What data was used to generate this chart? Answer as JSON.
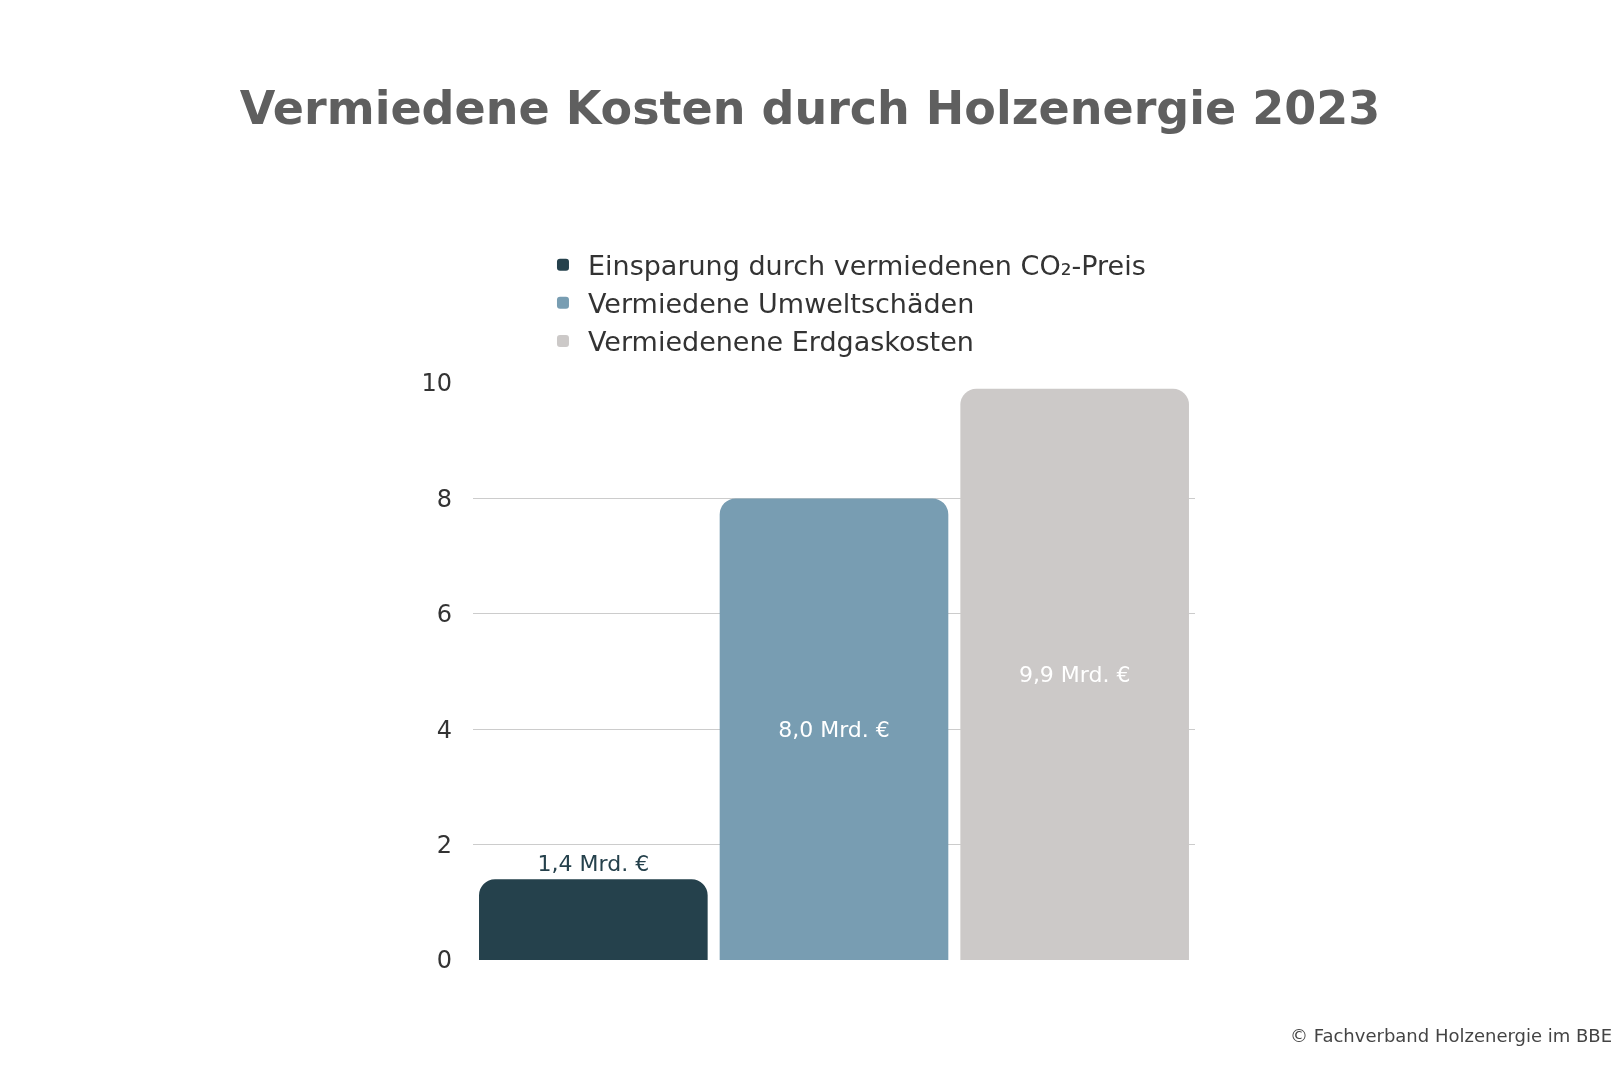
{
  "chart_data": {
    "type": "bar",
    "title": "Vermiedene Kosten durch Holzenergie 2023",
    "categories": [
      null
    ],
    "series": [
      {
        "name": "Einsparung durch vermiedenen CO₂-Preis",
        "color": "#25414c",
        "values": [
          1.4
        ],
        "value_labels": [
          "1,4 Mrd. €"
        ]
      },
      {
        "name": "Vermiedene Umweltschäden",
        "color": "#789db2",
        "values": [
          8.0
        ],
        "value_labels": [
          "8,0 Mrd. €"
        ]
      },
      {
        "name": "Vermiedenene Erdgaskosten",
        "color": "#ccc9c8",
        "values": [
          9.9
        ],
        "value_labels": [
          "9,9 Mrd. €"
        ]
      }
    ],
    "ylim": [
      0,
      10
    ],
    "yticks": [
      0,
      2,
      4,
      6,
      8,
      10
    ],
    "grid": "y",
    "legend": "top left",
    "annotations": [
      "© Fachverband Holzenergie im BBE"
    ]
  }
}
